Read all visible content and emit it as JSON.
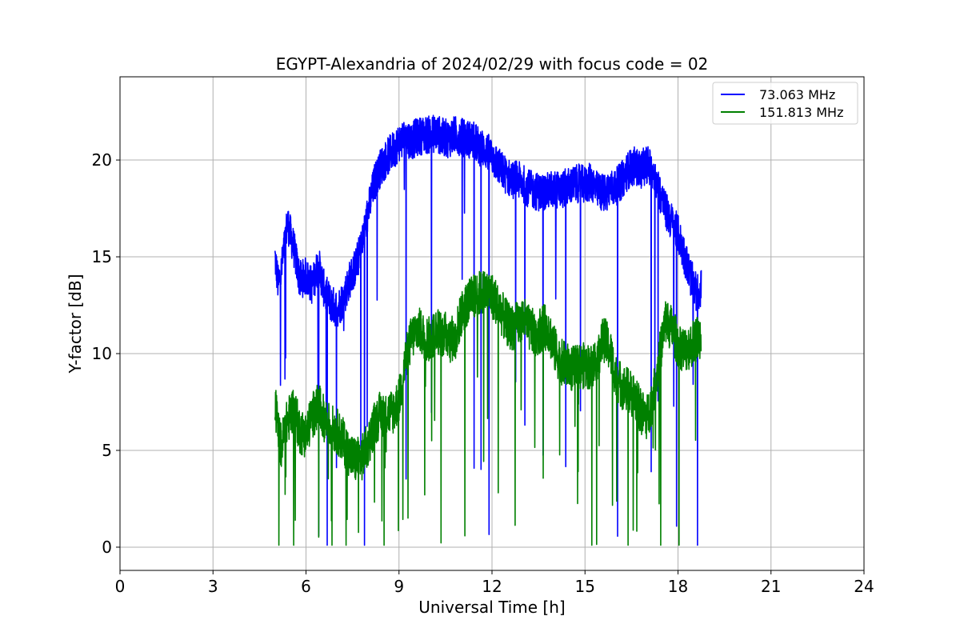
{
  "chart_data": {
    "type": "line",
    "title": "EGYPT-Alexandria of 2024/02/29 with focus code = 02",
    "xlabel": "Universal Time [h]",
    "ylabel": "Y-factor [dB]",
    "xlim": [
      0,
      24
    ],
    "ylim": [
      -1.2,
      24.3
    ],
    "xticks": [
      0,
      3,
      6,
      9,
      12,
      15,
      18,
      21,
      24
    ],
    "yticks": [
      0,
      5,
      10,
      15,
      20
    ],
    "grid": true,
    "legend_position": "top-right",
    "series": [
      {
        "name": "73.063 MHz",
        "color": "#0000ff",
        "x": [
          5.0,
          5.1,
          5.2,
          5.4,
          5.6,
          5.8,
          6.0,
          6.2,
          6.4,
          6.6,
          6.8,
          7.0,
          7.2,
          7.4,
          7.6,
          7.8,
          8.0,
          8.2,
          8.4,
          8.6,
          8.8,
          9.0,
          9.2,
          9.4,
          9.6,
          9.8,
          10.0,
          10.2,
          10.4,
          10.6,
          10.8,
          11.0,
          11.2,
          11.4,
          11.6,
          11.8,
          12.0,
          12.2,
          12.4,
          12.6,
          12.8,
          13.0,
          13.2,
          13.4,
          13.6,
          13.8,
          14.0,
          14.2,
          14.4,
          14.6,
          14.8,
          15.0,
          15.2,
          15.4,
          15.6,
          15.8,
          16.0,
          16.2,
          16.4,
          16.6,
          16.8,
          17.0,
          17.2,
          17.4,
          17.6,
          17.8,
          18.0,
          18.2,
          18.4,
          18.6,
          18.75
        ],
        "y": [
          15.0,
          13.6,
          14.2,
          16.8,
          15.5,
          13.8,
          14.0,
          13.5,
          14.6,
          13.2,
          12.6,
          12.3,
          12.8,
          13.8,
          14.5,
          15.6,
          17.3,
          18.8,
          19.6,
          20.1,
          20.5,
          20.9,
          21.2,
          21.0,
          21.2,
          21.3,
          21.3,
          21.4,
          21.2,
          21.1,
          21.3,
          21.2,
          21.1,
          21.0,
          20.7,
          20.5,
          20.2,
          19.7,
          19.3,
          19.0,
          19.0,
          18.8,
          18.5,
          18.4,
          18.3,
          18.4,
          18.5,
          18.4,
          18.6,
          18.7,
          18.8,
          18.7,
          18.9,
          18.4,
          18.3,
          18.5,
          18.6,
          19.0,
          19.5,
          19.7,
          19.5,
          19.8,
          19.4,
          18.4,
          17.4,
          16.8,
          16.2,
          15.1,
          14.0,
          13.1,
          13.4
        ]
      },
      {
        "name": "151.813 MHz",
        "color": "#008000",
        "x": [
          5.0,
          5.1,
          5.2,
          5.4,
          5.6,
          5.8,
          6.0,
          6.2,
          6.4,
          6.6,
          6.8,
          7.0,
          7.2,
          7.4,
          7.6,
          7.8,
          8.0,
          8.2,
          8.4,
          8.6,
          8.8,
          9.0,
          9.2,
          9.4,
          9.6,
          9.8,
          10.0,
          10.2,
          10.4,
          10.6,
          10.8,
          11.0,
          11.2,
          11.4,
          11.6,
          11.8,
          12.0,
          12.2,
          12.4,
          12.6,
          12.8,
          13.0,
          13.2,
          13.4,
          13.6,
          13.8,
          14.0,
          14.2,
          14.4,
          14.6,
          14.8,
          15.0,
          15.2,
          15.4,
          15.6,
          15.8,
          16.0,
          16.2,
          16.4,
          16.6,
          16.8,
          17.0,
          17.2,
          17.4,
          17.6,
          17.8,
          18.0,
          18.2,
          18.4,
          18.6,
          18.75
        ],
        "y": [
          7.5,
          6.0,
          5.2,
          6.5,
          7.2,
          6.0,
          5.8,
          6.8,
          7.3,
          6.6,
          6.2,
          6.0,
          5.5,
          4.8,
          4.5,
          4.6,
          5.3,
          6.3,
          6.9,
          6.9,
          7.0,
          7.6,
          9.6,
          10.8,
          11.3,
          10.9,
          10.7,
          11.2,
          11.0,
          11.0,
          10.7,
          12.0,
          12.6,
          12.9,
          13.1,
          13.2,
          13.0,
          12.5,
          11.8,
          11.3,
          11.5,
          11.8,
          11.3,
          11.0,
          11.3,
          11.4,
          10.3,
          9.6,
          9.4,
          9.2,
          9.3,
          9.4,
          9.3,
          9.8,
          10.8,
          10.2,
          8.8,
          8.3,
          8.1,
          7.8,
          7.0,
          6.7,
          7.8,
          9.8,
          11.7,
          11.3,
          10.5,
          10.2,
          10.4,
          10.8,
          11.0
        ]
      }
    ]
  }
}
